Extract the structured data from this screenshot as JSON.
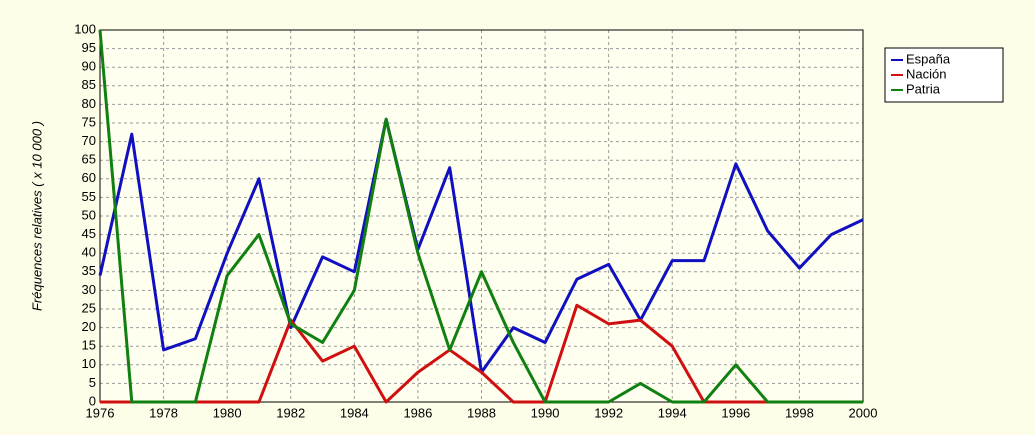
{
  "chart_data": {
    "type": "line",
    "y_label": "Fréquences relatives ( x 10 000 )",
    "x": [
      1976,
      1977,
      1978,
      1979,
      1980,
      1981,
      1982,
      1983,
      1984,
      1985,
      1986,
      1987,
      1988,
      1989,
      1990,
      1991,
      1992,
      1993,
      1994,
      1995,
      1996,
      1997,
      1998,
      1999,
      2000
    ],
    "series": [
      {
        "name": "España",
        "color": "#1010c0",
        "values": [
          34,
          72,
          14,
          17,
          40,
          60,
          20,
          39,
          35,
          76,
          41,
          63,
          8,
          20,
          16,
          33,
          37,
          22,
          38,
          38,
          64,
          46,
          36,
          45,
          49
        ]
      },
      {
        "name": "Nación",
        "color": "#d01010",
        "values": [
          0,
          0,
          0,
          0,
          0,
          0,
          22,
          11,
          15,
          0,
          8,
          14,
          8,
          0,
          0,
          26,
          21,
          22,
          15,
          0,
          0,
          0,
          0,
          0,
          0
        ]
      },
      {
        "name": "Patria",
        "color": "#108010",
        "values": [
          100,
          0,
          0,
          0,
          34,
          45,
          21,
          16,
          30,
          76,
          40,
          14,
          35,
          16,
          0,
          0,
          0,
          5,
          0,
          0,
          10,
          0,
          0,
          0,
          0
        ]
      }
    ],
    "xlim": [
      1976,
      2000
    ],
    "xticks": [
      1976,
      1978,
      1980,
      1982,
      1984,
      1986,
      1988,
      1990,
      1992,
      1994,
      1996,
      1998,
      2000
    ],
    "ylim": [
      0,
      100
    ],
    "yticks": [
      0,
      5,
      10,
      15,
      20,
      25,
      30,
      35,
      40,
      45,
      50,
      55,
      60,
      65,
      70,
      75,
      80,
      85,
      90,
      95,
      100
    ],
    "grid": true,
    "legend": "right"
  }
}
